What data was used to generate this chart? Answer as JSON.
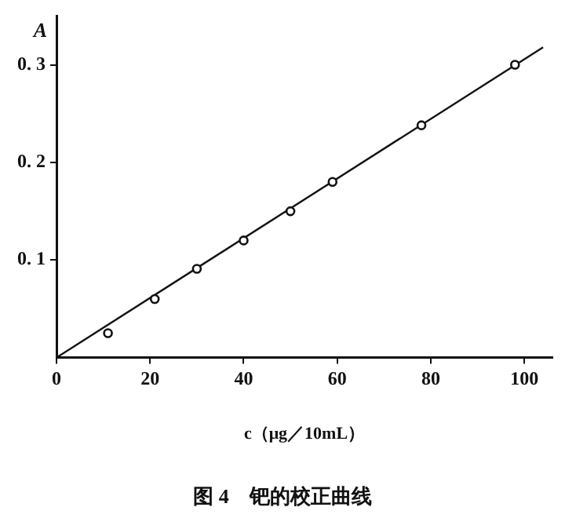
{
  "chart_data": {
    "type": "scatter",
    "title": "图 4　钯的校正曲线",
    "xlabel": "c（μg／10mL）",
    "ylabel": "A",
    "x": [
      11,
      21,
      30,
      40,
      50,
      59,
      78,
      98
    ],
    "series": [
      {
        "color": "#111111",
        "marker": "circle",
        "values": [
          0.025,
          0.06,
          0.091,
          0.12,
          0.15,
          0.18,
          0.238,
          0.3
        ]
      },
      {
        "type": "line",
        "color": "#111111",
        "x": [
          0,
          104
        ],
        "values": [
          0,
          0.318
        ]
      }
    ],
    "xlim": [
      0,
      106
    ],
    "ylim": [
      0,
      0.35
    ],
    "xticks": [
      0,
      20,
      40,
      60,
      80,
      100
    ],
    "yticks": [
      0.1,
      0.2,
      0.3
    ],
    "grid": false,
    "legend": false,
    "line_style": "solid"
  }
}
